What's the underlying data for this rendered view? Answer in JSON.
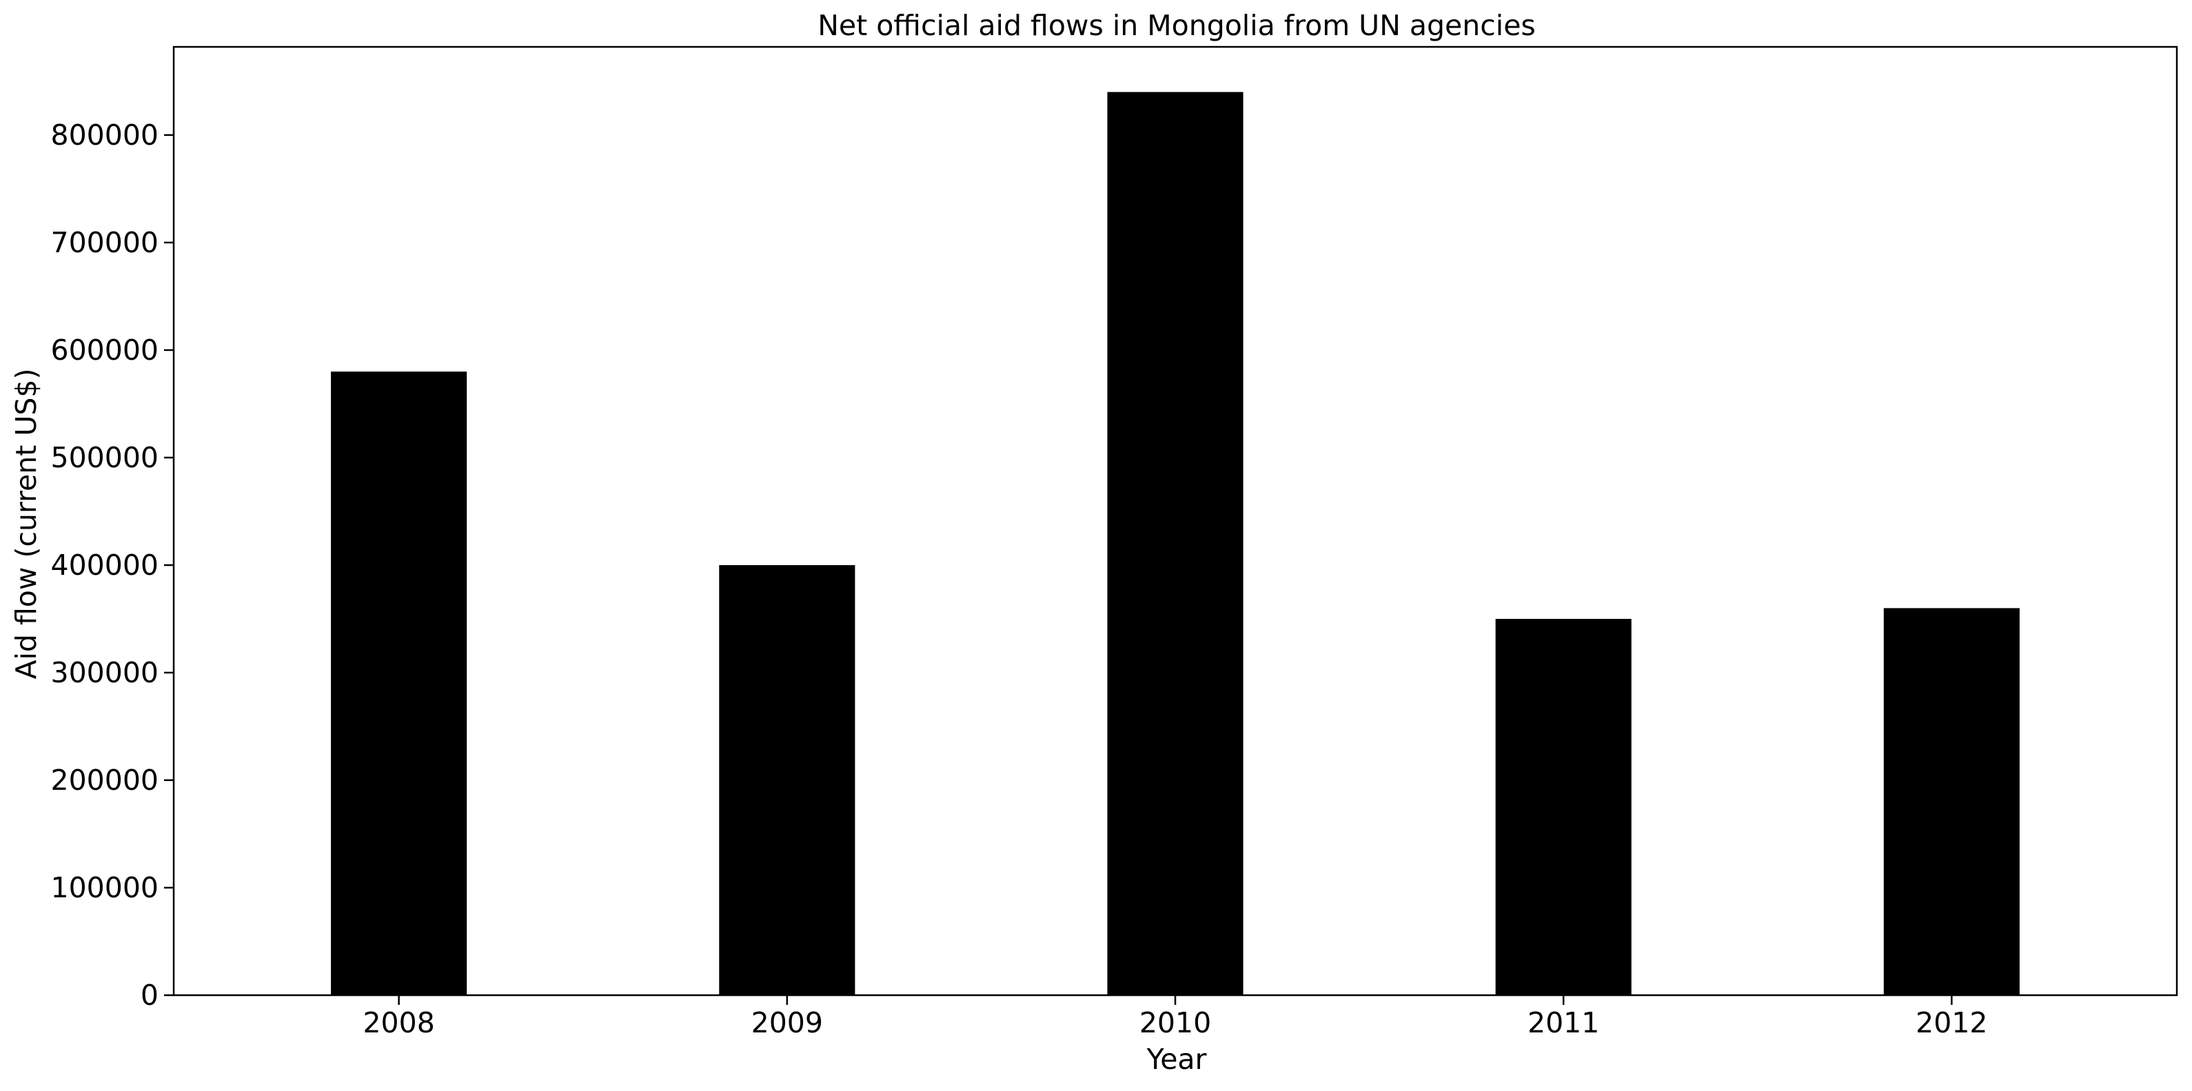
{
  "chart_data": {
    "type": "bar",
    "title": "Net official aid flows in Mongolia from UN agencies",
    "xlabel": "Year",
    "ylabel": "Aid flow (current US$)",
    "categories": [
      "2008",
      "2009",
      "2010",
      "2011",
      "2012"
    ],
    "values": [
      580000,
      400000,
      840000,
      350000,
      360000
    ],
    "ylim": [
      0,
      882000
    ],
    "yticks": [
      0,
      100000,
      200000,
      300000,
      400000,
      500000,
      600000,
      700000,
      800000
    ],
    "grid": false,
    "legend": "none",
    "bar_color": "#000000"
  }
}
